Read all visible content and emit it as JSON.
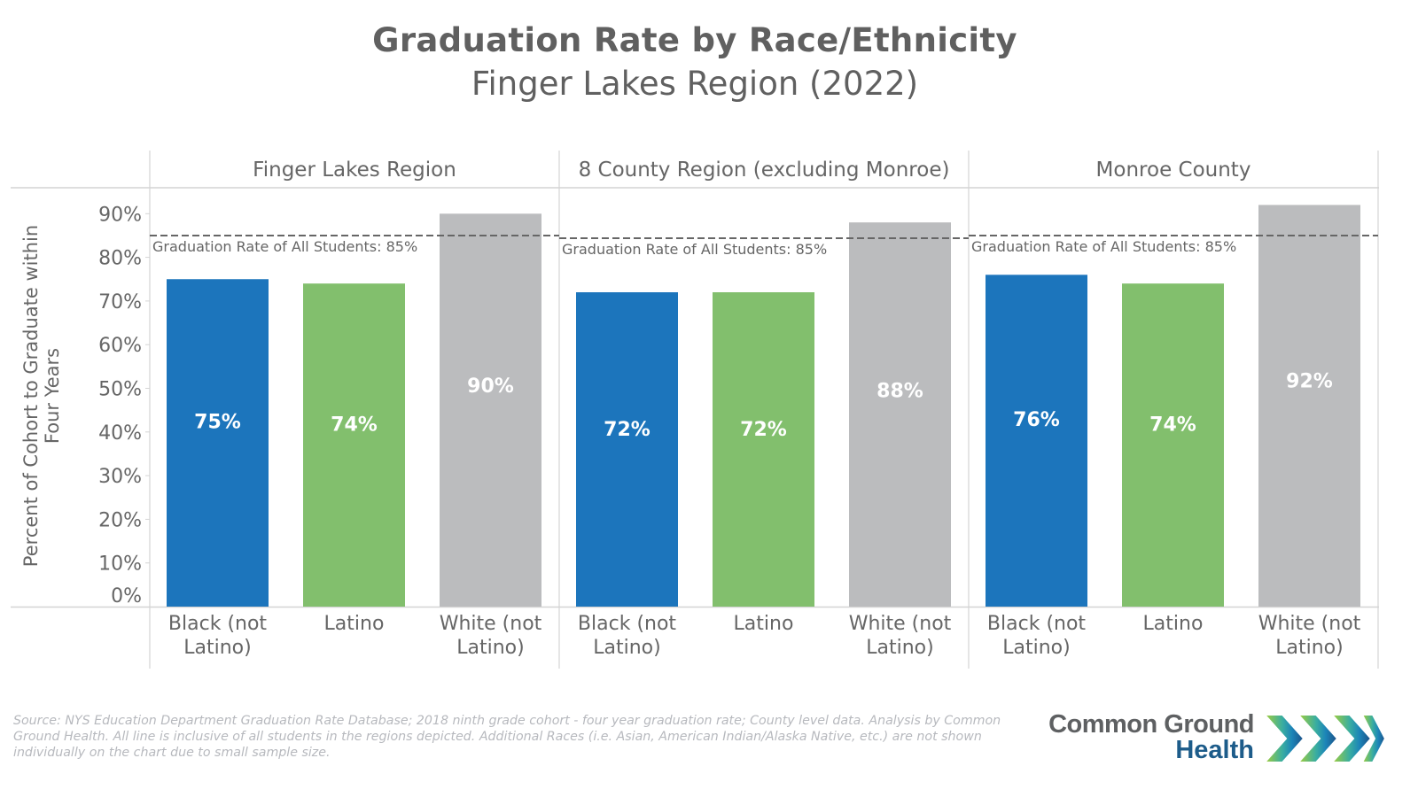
{
  "header": {
    "title": "Graduation Rate by Race/Ethnicity",
    "subtitle": "Finger Lakes Region (2022)"
  },
  "chart_data": {
    "type": "bar",
    "title": "Graduation Rate by Race/Ethnicity",
    "subtitle": "Finger Lakes Region (2022)",
    "ylabel": "Percent of Cohort to Graduate within Four Years",
    "xlabel": "",
    "ylim": [
      0,
      90
    ],
    "yticks": [
      "0%",
      "10%",
      "20%",
      "30%",
      "40%",
      "50%",
      "60%",
      "70%",
      "80%",
      "90%"
    ],
    "ytick_values": [
      0,
      10,
      20,
      30,
      40,
      50,
      60,
      70,
      80,
      90
    ],
    "grid": false,
    "legend": "none",
    "categories": [
      "Black (not Latino)",
      "Latino",
      "White (not Latino)"
    ],
    "category_lines": [
      [
        "Black (not",
        "Latino)"
      ],
      [
        "Latino"
      ],
      [
        "White (not",
        "Latino)"
      ]
    ],
    "category_colors": [
      "#1c75bc",
      "#82bf6d",
      "#bbbcbe"
    ],
    "panels": [
      {
        "name": "Finger Lakes Region",
        "values": [
          75,
          74,
          90
        ],
        "labels": [
          "75%",
          "74%",
          "90%"
        ],
        "reference": {
          "value": 85,
          "label": "Graduation Rate of All Students: 85%"
        }
      },
      {
        "name": "8 County Region (excluding Monroe)",
        "values": [
          72,
          72,
          88
        ],
        "labels": [
          "72%",
          "72%",
          "88%"
        ],
        "reference": {
          "value": 85,
          "label": "Graduation Rate of All Students: 85%"
        }
      },
      {
        "name": "Monroe County",
        "values": [
          76,
          74,
          92
        ],
        "labels": [
          "76%",
          "74%",
          "92%"
        ],
        "reference": {
          "value": 85,
          "label": "Graduation Rate of All Students: 85%"
        }
      }
    ]
  },
  "footer": {
    "source": "Source: NYS Education Department Graduation Rate Database; 2018 ninth grade cohort - four year graduation rate; County level data. Analysis by Common Ground Health. All line is inclusive of all students in the regions depicted. Additional Races (i.e. Asian, American Indian/Alaska Native, etc.) are not shown individually on the chart due to small sample size.",
    "logo_line1": "Common Ground",
    "logo_line2": "Health"
  },
  "colors": {
    "black": "#1c75bc",
    "latino": "#82bf6d",
    "white": "#bbbcbe",
    "reference_line": "#666666",
    "text": "#666666"
  }
}
